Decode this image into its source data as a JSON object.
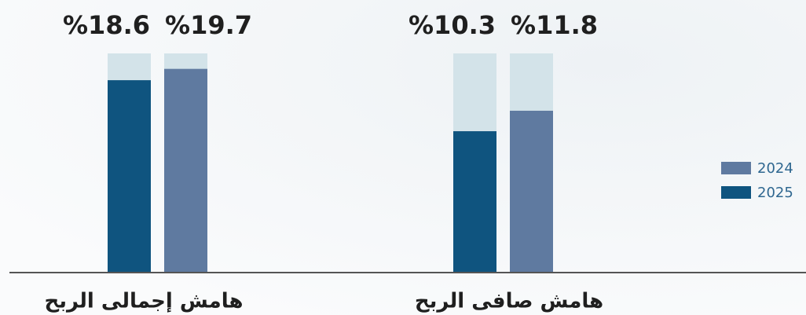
{
  "chart_data": [
    {
      "type": "bar",
      "categories": [
        "هامش إجمالى الربح"
      ],
      "ylim": [
        0,
        21.2
      ],
      "series": [
        {
          "name": "2024",
          "color": "#5f7aa0",
          "values": [
            19.7
          ],
          "value_labels": [
            "%19.7"
          ]
        },
        {
          "name": "2025",
          "color": "#0f547f",
          "values": [
            18.6
          ],
          "value_labels": [
            "%18.6"
          ]
        }
      ]
    },
    {
      "type": "bar",
      "categories": [
        "هامش صافى الربح"
      ],
      "ylim": [
        0,
        16
      ],
      "series": [
        {
          "name": "2024",
          "color": "#5f7aa0",
          "values": [
            11.8
          ],
          "value_labels": [
            "%11.8"
          ]
        },
        {
          "name": "2025",
          "color": "#0f547f",
          "values": [
            10.3
          ],
          "value_labels": [
            "%10.3"
          ]
        }
      ]
    }
  ]
}
